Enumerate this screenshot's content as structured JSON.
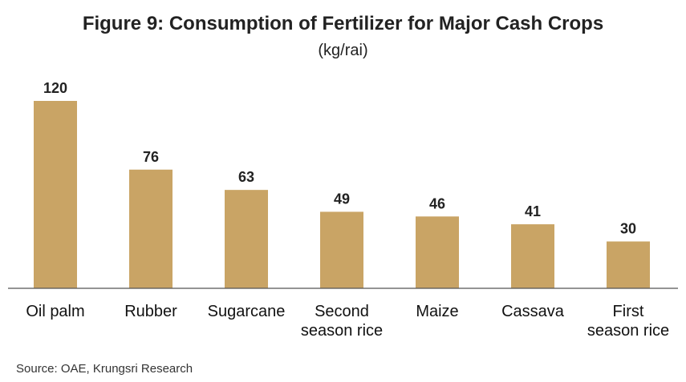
{
  "chart_data": {
    "type": "bar",
    "title": "Figure 9: Consumption of Fertilizer for Major Cash Crops",
    "subtitle": "(kg/rai)",
    "categories": [
      "Oil palm",
      "Rubber",
      "Sugarcane",
      "Second season rice",
      "Maize",
      "Cassava",
      "First season rice"
    ],
    "category_lines": [
      [
        "Oil palm"
      ],
      [
        "Rubber"
      ],
      [
        "Sugarcane"
      ],
      [
        "Second",
        "season rice"
      ],
      [
        "Maize"
      ],
      [
        "Cassava"
      ],
      [
        "First",
        "season rice"
      ]
    ],
    "values": [
      120,
      76,
      63,
      49,
      46,
      41,
      30
    ],
    "ylim": [
      0,
      120
    ],
    "grid": false,
    "data_labels": true,
    "bar_color": "#C9A465",
    "source": "Source: OAE,  Krungsri Research"
  }
}
